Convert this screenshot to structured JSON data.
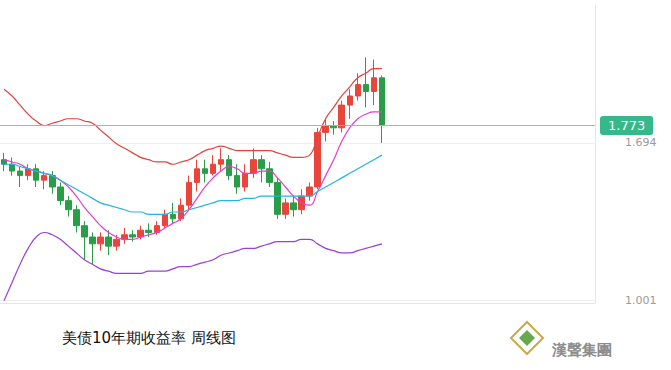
{
  "chart_data": {
    "type": "candlestick",
    "title": "美债10年期收益率 周线图",
    "logo_text": "漢聲集團",
    "categories": [
      null,
      null,
      null,
      null,
      null,
      null,
      null,
      null,
      null,
      null,
      null,
      null,
      null,
      null,
      null,
      null,
      null,
      null,
      null,
      null,
      null,
      null,
      null,
      null,
      null,
      null,
      null,
      null,
      null,
      null,
      null,
      null,
      null,
      null,
      null,
      null,
      null,
      null,
      null,
      null,
      null,
      null,
      null,
      null,
      null,
      null,
      null,
      null,
      null,
      null,
      null,
      null,
      null,
      null,
      null,
      null,
      null,
      null,
      null,
      null,
      null,
      null,
      null,
      null,
      null,
      null,
      null,
      null,
      null,
      null,
      null,
      null,
      null,
      null
    ],
    "open": [
      1.62,
      1.6,
      1.57,
      1.55,
      1.58,
      1.53,
      1.55,
      1.5,
      1.44,
      1.4,
      1.33,
      1.28,
      1.25,
      1.28,
      1.24,
      1.27,
      1.29,
      1.28,
      1.31,
      1.3,
      1.33,
      1.38,
      1.36,
      1.42,
      1.52,
      1.58,
      1.56,
      1.6,
      1.62,
      1.55,
      1.5,
      1.56,
      1.62,
      1.58,
      1.52,
      1.38,
      1.43,
      1.4,
      1.46,
      1.5,
      1.74,
      1.77,
      1.76,
      1.86,
      1.9,
      1.95,
      1.92,
      1.98,
      null,
      null,
      null,
      null,
      null,
      null,
      null,
      null,
      null,
      null,
      null,
      null,
      null,
      null,
      null,
      null,
      null,
      null,
      null,
      null,
      null,
      null,
      null,
      null,
      null,
      null
    ],
    "close": [
      1.6,
      1.57,
      1.55,
      1.58,
      1.53,
      1.55,
      1.5,
      1.44,
      1.4,
      1.33,
      1.28,
      1.25,
      1.28,
      1.24,
      1.27,
      1.29,
      1.28,
      1.31,
      1.3,
      1.33,
      1.38,
      1.36,
      1.42,
      1.52,
      1.58,
      1.56,
      1.6,
      1.62,
      1.55,
      1.5,
      1.56,
      1.62,
      1.58,
      1.52,
      1.38,
      1.43,
      1.4,
      1.46,
      1.5,
      1.74,
      1.77,
      1.76,
      1.86,
      1.9,
      1.95,
      1.92,
      1.98,
      1.773,
      null,
      null,
      null,
      null,
      null,
      null,
      null,
      null,
      null,
      null,
      null,
      null,
      null,
      null,
      null,
      null,
      null,
      null,
      null,
      null,
      null,
      null,
      null,
      null,
      null,
      null
    ],
    "low": [
      1.57,
      1.55,
      1.5,
      1.53,
      1.5,
      1.49,
      1.47,
      1.42,
      1.37,
      1.3,
      1.18,
      1.16,
      1.22,
      1.2,
      1.22,
      1.25,
      1.26,
      1.27,
      1.28,
      1.29,
      1.32,
      1.34,
      1.35,
      1.4,
      1.48,
      1.52,
      1.55,
      1.57,
      1.53,
      1.47,
      1.48,
      1.54,
      1.52,
      1.5,
      1.36,
      1.36,
      1.37,
      1.38,
      1.44,
      1.49,
      1.7,
      1.73,
      1.74,
      1.8,
      1.88,
      1.85,
      1.86,
      1.694,
      null,
      null,
      null,
      null,
      null,
      null,
      null,
      null,
      null,
      null,
      null,
      null,
      null,
      null,
      null,
      null,
      null,
      null,
      null,
      null,
      null,
      null,
      null,
      null,
      null,
      null
    ],
    "high": [
      1.65,
      1.63,
      1.59,
      1.6,
      1.6,
      1.57,
      1.57,
      1.52,
      1.46,
      1.42,
      1.35,
      1.3,
      1.3,
      1.31,
      1.29,
      1.32,
      1.31,
      1.33,
      1.34,
      1.35,
      1.4,
      1.43,
      1.45,
      1.55,
      1.62,
      1.62,
      1.64,
      1.67,
      1.64,
      1.6,
      1.6,
      1.67,
      1.64,
      1.61,
      1.54,
      1.45,
      1.46,
      1.49,
      1.52,
      1.76,
      1.8,
      1.79,
      1.88,
      1.93,
      2.0,
      2.07,
      2.06,
      1.99,
      null,
      null,
      null,
      null,
      null,
      null,
      null,
      null,
      null,
      null,
      null,
      null,
      null,
      null,
      null,
      null,
      null,
      null,
      null,
      null,
      null,
      null,
      null,
      null,
      null,
      null
    ],
    "series": [
      {
        "type": "line",
        "color": "#e0453c",
        "values": [
          1.93,
          1.9,
          1.86,
          1.82,
          1.79,
          1.77,
          1.78,
          1.79,
          1.8,
          1.8,
          1.79,
          1.78,
          1.75,
          1.72,
          1.69,
          1.67,
          1.65,
          1.63,
          1.62,
          1.61,
          1.61,
          1.6,
          1.61,
          1.62,
          1.64,
          1.66,
          1.67,
          1.68,
          1.67,
          1.66,
          1.66,
          1.66,
          1.66,
          1.66,
          1.65,
          1.64,
          1.63,
          1.63,
          1.64,
          1.72,
          1.8,
          1.85,
          1.9,
          1.94,
          1.98,
          2.0,
          2.02,
          2.02,
          null,
          null,
          null,
          null,
          null,
          null,
          null,
          null,
          null,
          null,
          null,
          null,
          null,
          null,
          null,
          null,
          null,
          null,
          null,
          null,
          null,
          null,
          null,
          null,
          null,
          null
        ]
      },
      {
        "type": "line",
        "color": "#e23fd0",
        "values": [
          1.62,
          1.61,
          1.6,
          1.58,
          1.57,
          1.56,
          1.55,
          1.53,
          1.5,
          1.46,
          1.41,
          1.37,
          1.33,
          1.3,
          1.28,
          1.27,
          1.27,
          1.28,
          1.29,
          1.3,
          1.32,
          1.34,
          1.36,
          1.4,
          1.45,
          1.5,
          1.54,
          1.57,
          1.59,
          1.58,
          1.56,
          1.56,
          1.57,
          1.57,
          1.54,
          1.5,
          1.46,
          1.43,
          1.42,
          1.48,
          1.55,
          1.62,
          1.7,
          1.76,
          1.8,
          1.82,
          1.83,
          1.83,
          null,
          null,
          null,
          null,
          null,
          null,
          null,
          null,
          null,
          null,
          null,
          null,
          null,
          null,
          null,
          null,
          null,
          null,
          null,
          null,
          null,
          null,
          null,
          null,
          null,
          null
        ]
      },
      {
        "type": "line",
        "color": "#27b4e0",
        "values": [
          1.6,
          1.6,
          1.59,
          1.58,
          1.57,
          1.56,
          1.55,
          1.53,
          1.51,
          1.49,
          1.47,
          1.45,
          1.43,
          1.42,
          1.41,
          1.4,
          1.39,
          1.39,
          1.38,
          1.38,
          1.38,
          1.39,
          1.39,
          1.4,
          1.41,
          1.42,
          1.43,
          1.44,
          1.44,
          1.44,
          1.45,
          1.45,
          1.46,
          1.46,
          1.46,
          1.46,
          1.46,
          1.46,
          1.46,
          1.48,
          1.5,
          1.52,
          1.54,
          1.56,
          1.58,
          1.6,
          1.62,
          1.64,
          null,
          null,
          null,
          null,
          null,
          null,
          null,
          null,
          null,
          null,
          null,
          null,
          null,
          null,
          null,
          null,
          null,
          null,
          null,
          null,
          null,
          null,
          null,
          null,
          null,
          null
        ]
      },
      {
        "type": "line",
        "color": "#9b3fd6",
        "values": [
          1.0,
          1.08,
          1.16,
          1.23,
          1.28,
          1.3,
          1.29,
          1.27,
          1.24,
          1.21,
          1.18,
          1.16,
          1.14,
          1.13,
          1.12,
          1.12,
          1.12,
          1.12,
          1.13,
          1.13,
          1.13,
          1.14,
          1.15,
          1.15,
          1.16,
          1.17,
          1.18,
          1.2,
          1.21,
          1.22,
          1.23,
          1.23,
          1.24,
          1.25,
          1.26,
          1.26,
          1.26,
          1.27,
          1.27,
          1.25,
          1.23,
          1.22,
          1.21,
          1.21,
          1.22,
          1.23,
          1.24,
          1.25,
          null,
          null,
          null,
          null,
          null,
          null,
          null,
          null,
          null,
          null,
          null,
          null,
          null,
          null,
          null,
          null,
          null,
          null,
          null,
          null,
          null,
          null,
          null,
          null,
          null,
          null
        ]
      }
    ],
    "last_value": 1.773,
    "ylim": [
      0.99,
      2.3
    ],
    "yticks": [
      1.001,
      1.694
    ],
    "grid": true,
    "tick_labels": "y"
  }
}
